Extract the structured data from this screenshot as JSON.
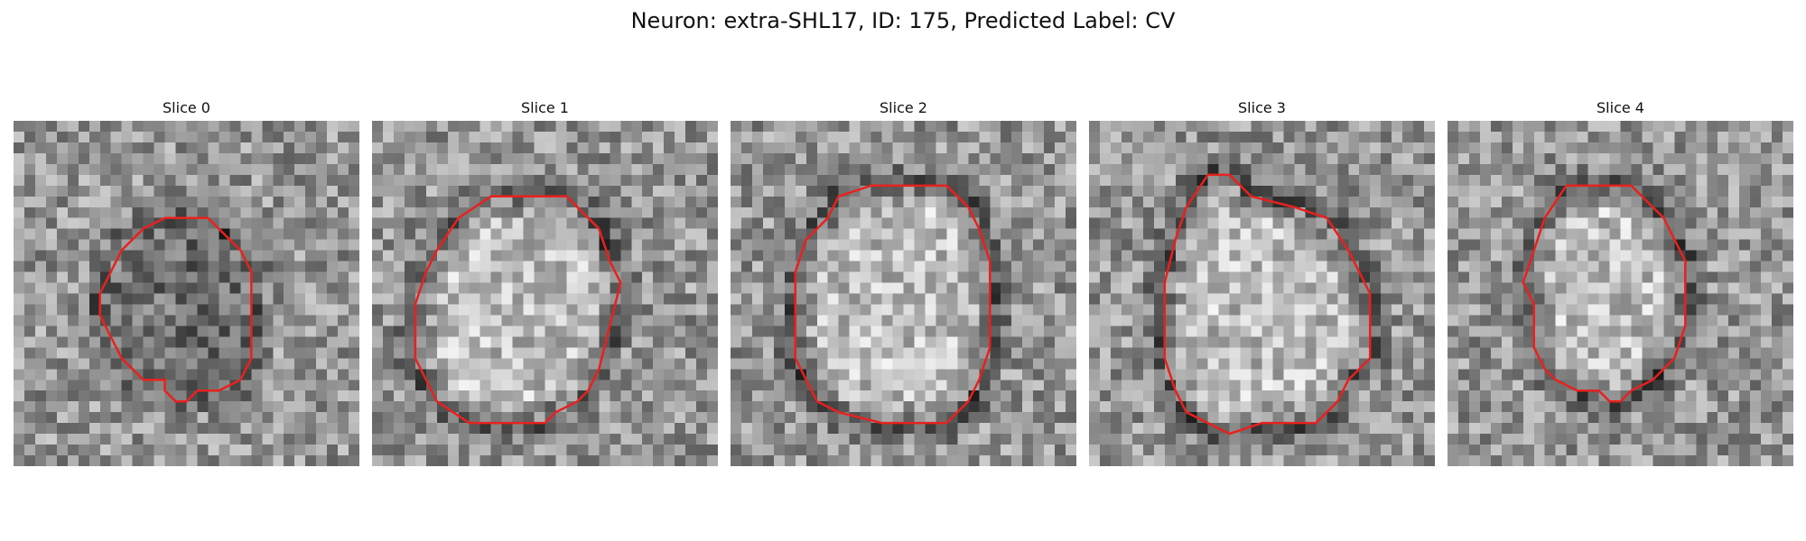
{
  "figure": {
    "title": "Neuron: extra-SHL17, ID: 175, Predicted Label: CV"
  },
  "colors": {
    "contour": "#e8211f",
    "background": "#ffffff"
  },
  "image_grid": 32,
  "panels": [
    {
      "title": "Slice 0",
      "seed": 11,
      "contour": [
        [
          14,
          9
        ],
        [
          18,
          9
        ],
        [
          21,
          12
        ],
        [
          22,
          14
        ],
        [
          22,
          22
        ],
        [
          21,
          24
        ],
        [
          19,
          25
        ],
        [
          17,
          25
        ],
        [
          16,
          26
        ],
        [
          15,
          26
        ],
        [
          14,
          25
        ],
        [
          14,
          24
        ],
        [
          12,
          24
        ],
        [
          11,
          23
        ],
        [
          10,
          22
        ],
        [
          9,
          20
        ],
        [
          8,
          18
        ],
        [
          8,
          16
        ],
        [
          9,
          14
        ],
        [
          10,
          12
        ],
        [
          12,
          10
        ]
      ]
    },
    {
      "title": "Slice 1",
      "seed": 29,
      "contour": [
        [
          11,
          7
        ],
        [
          18,
          7
        ],
        [
          21,
          10
        ],
        [
          22,
          13
        ],
        [
          23,
          15
        ],
        [
          22,
          19
        ],
        [
          21,
          23
        ],
        [
          20,
          25
        ],
        [
          19,
          26
        ],
        [
          17,
          27
        ],
        [
          16,
          28
        ],
        [
          9,
          28
        ],
        [
          6,
          26
        ],
        [
          5,
          24
        ],
        [
          4,
          22
        ],
        [
          4,
          17
        ],
        [
          5,
          14
        ],
        [
          6,
          12
        ],
        [
          8,
          9
        ]
      ]
    },
    {
      "title": "Slice 2",
      "seed": 47,
      "contour": [
        [
          13,
          6
        ],
        [
          20,
          6
        ],
        [
          22,
          8
        ],
        [
          23,
          10
        ],
        [
          24,
          13
        ],
        [
          24,
          21
        ],
        [
          23,
          24
        ],
        [
          22,
          26
        ],
        [
          21,
          27
        ],
        [
          20,
          28
        ],
        [
          14,
          28
        ],
        [
          10,
          27
        ],
        [
          8,
          26
        ],
        [
          7,
          24
        ],
        [
          6,
          22
        ],
        [
          6,
          14
        ],
        [
          7,
          11
        ],
        [
          9,
          9
        ],
        [
          10,
          7
        ]
      ]
    },
    {
      "title": "Slice 3",
      "seed": 83,
      "contour": [
        [
          11,
          5
        ],
        [
          13,
          5
        ],
        [
          15,
          7
        ],
        [
          19,
          8
        ],
        [
          22,
          9
        ],
        [
          24,
          12
        ],
        [
          25,
          14
        ],
        [
          26,
          16
        ],
        [
          26,
          22
        ],
        [
          25,
          23
        ],
        [
          24,
          24
        ],
        [
          23,
          26
        ],
        [
          21,
          28
        ],
        [
          18,
          28
        ],
        [
          16,
          28
        ],
        [
          13,
          29
        ],
        [
          11,
          28
        ],
        [
          9,
          27
        ],
        [
          8,
          25
        ],
        [
          7,
          22
        ],
        [
          7,
          15
        ],
        [
          8,
          11
        ],
        [
          9,
          8
        ]
      ]
    },
    {
      "title": "Slice 4",
      "seed": 61,
      "contour": [
        [
          11,
          6
        ],
        [
          17,
          6
        ],
        [
          20,
          9
        ],
        [
          21,
          11
        ],
        [
          22,
          13
        ],
        [
          22,
          19
        ],
        [
          21,
          22
        ],
        [
          20,
          23
        ],
        [
          19,
          24
        ],
        [
          17,
          25
        ],
        [
          16,
          26
        ],
        [
          15,
          26
        ],
        [
          14,
          25
        ],
        [
          12,
          25
        ],
        [
          10,
          24
        ],
        [
          9,
          23
        ],
        [
          8,
          21
        ],
        [
          8,
          17
        ],
        [
          7,
          15
        ],
        [
          8,
          12
        ],
        [
          9,
          9
        ]
      ]
    }
  ]
}
